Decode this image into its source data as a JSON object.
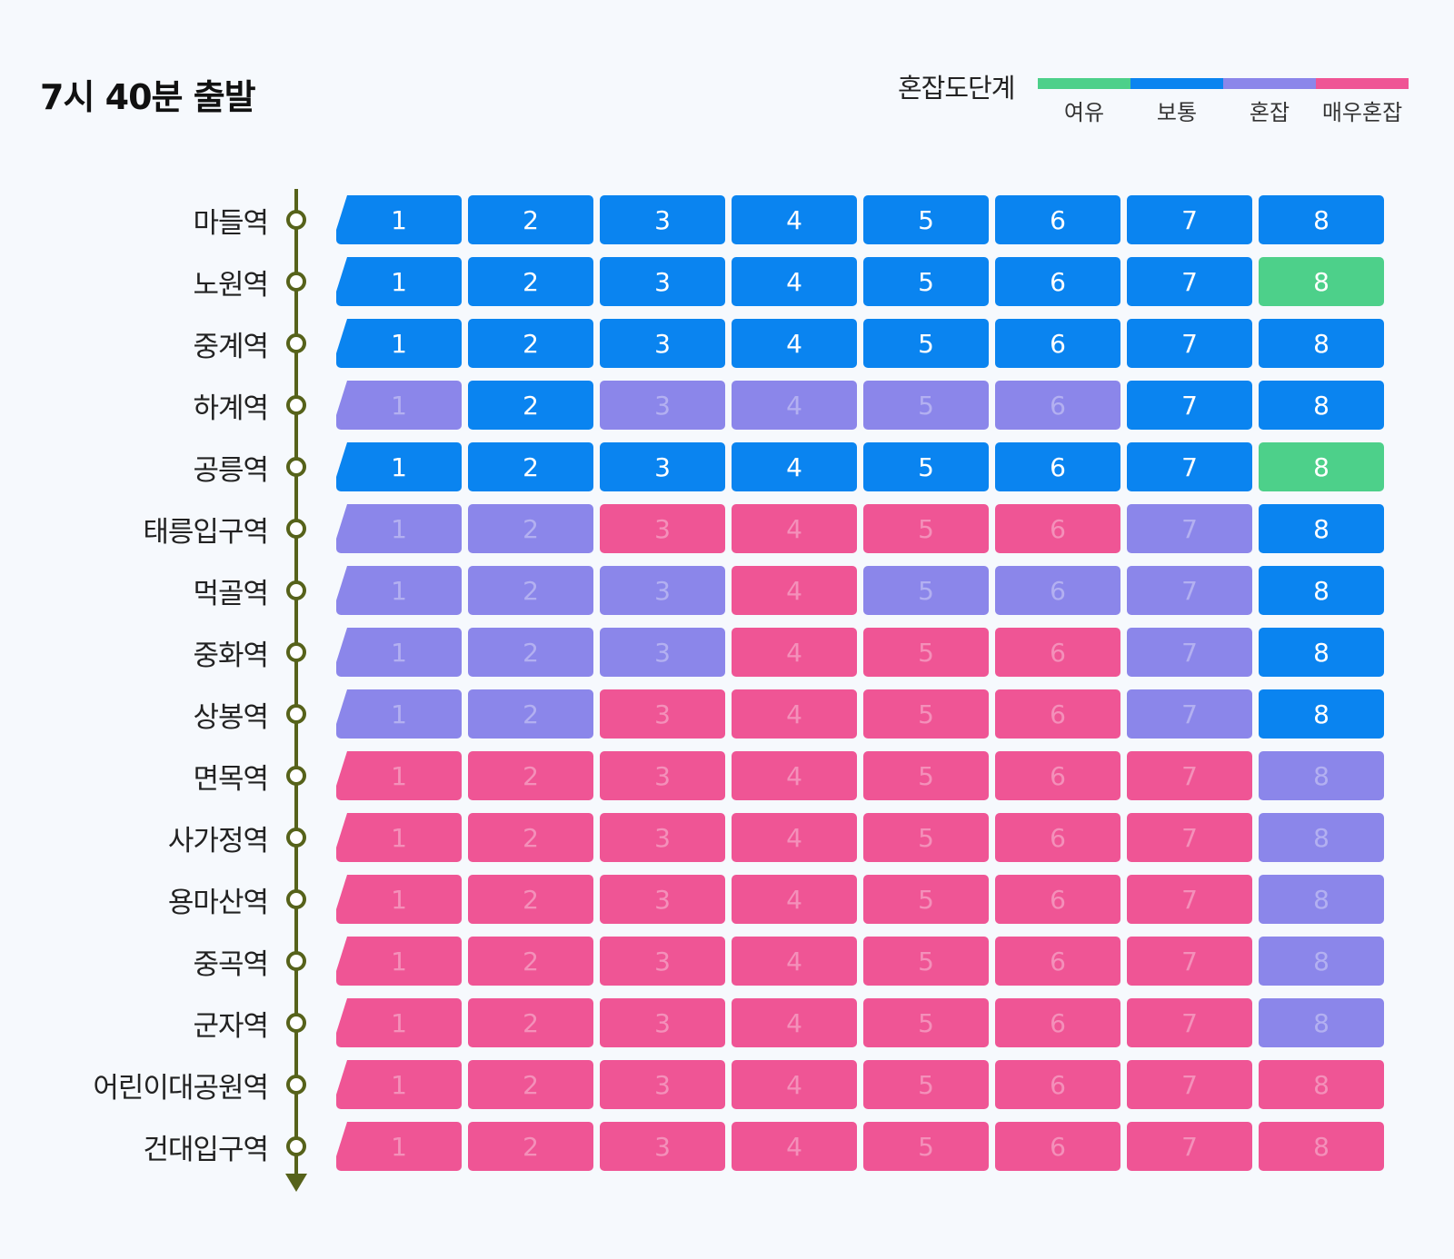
{
  "title": "7시 40분 출발",
  "legend": {
    "label": "혼잡도단계",
    "levels": [
      {
        "key": "relaxed",
        "label": "여유",
        "color": "#4dd08a"
      },
      {
        "key": "normal",
        "label": "보통",
        "color": "#0a84f0"
      },
      {
        "key": "crowded",
        "label": "혼잡",
        "color": "#8b86ea"
      },
      {
        "key": "very_crowded",
        "label": "매우혼잡",
        "color": "#ef5595"
      }
    ]
  },
  "colors": {
    "line": "#56621a",
    "station_dot_fill": "#ffffff"
  },
  "chart_data": {
    "type": "heatmap",
    "title": "7시 40분 출발",
    "cars": [
      "1",
      "2",
      "3",
      "4",
      "5",
      "6",
      "7",
      "8"
    ],
    "stations": [
      "마들역",
      "노원역",
      "중계역",
      "하계역",
      "공릉역",
      "태릉입구역",
      "먹골역",
      "중화역",
      "상봉역",
      "면목역",
      "사가정역",
      "용마산역",
      "중곡역",
      "군자역",
      "어린이대공원역",
      "건대입구역"
    ],
    "levels": [
      [
        "normal",
        "normal",
        "normal",
        "normal",
        "normal",
        "normal",
        "normal",
        "normal"
      ],
      [
        "normal",
        "normal",
        "normal",
        "normal",
        "normal",
        "normal",
        "normal",
        "relaxed"
      ],
      [
        "normal",
        "normal",
        "normal",
        "normal",
        "normal",
        "normal",
        "normal",
        "normal"
      ],
      [
        "crowded",
        "normal",
        "crowded",
        "crowded",
        "crowded",
        "crowded",
        "normal",
        "normal"
      ],
      [
        "normal",
        "normal",
        "normal",
        "normal",
        "normal",
        "normal",
        "normal",
        "relaxed"
      ],
      [
        "crowded",
        "crowded",
        "very_crowded",
        "very_crowded",
        "very_crowded",
        "very_crowded",
        "crowded",
        "normal"
      ],
      [
        "crowded",
        "crowded",
        "crowded",
        "very_crowded",
        "crowded",
        "crowded",
        "crowded",
        "normal"
      ],
      [
        "crowded",
        "crowded",
        "crowded",
        "very_crowded",
        "very_crowded",
        "very_crowded",
        "crowded",
        "normal"
      ],
      [
        "crowded",
        "crowded",
        "very_crowded",
        "very_crowded",
        "very_crowded",
        "very_crowded",
        "crowded",
        "normal"
      ],
      [
        "very_crowded",
        "very_crowded",
        "very_crowded",
        "very_crowded",
        "very_crowded",
        "very_crowded",
        "very_crowded",
        "crowded"
      ],
      [
        "very_crowded",
        "very_crowded",
        "very_crowded",
        "very_crowded",
        "very_crowded",
        "very_crowded",
        "very_crowded",
        "crowded"
      ],
      [
        "very_crowded",
        "very_crowded",
        "very_crowded",
        "very_crowded",
        "very_crowded",
        "very_crowded",
        "very_crowded",
        "crowded"
      ],
      [
        "very_crowded",
        "very_crowded",
        "very_crowded",
        "very_crowded",
        "very_crowded",
        "very_crowded",
        "very_crowded",
        "crowded"
      ],
      [
        "very_crowded",
        "very_crowded",
        "very_crowded",
        "very_crowded",
        "very_crowded",
        "very_crowded",
        "very_crowded",
        "crowded"
      ],
      [
        "very_crowded",
        "very_crowded",
        "very_crowded",
        "very_crowded",
        "very_crowded",
        "very_crowded",
        "very_crowded",
        "very_crowded"
      ],
      [
        "very_crowded",
        "very_crowded",
        "very_crowded",
        "very_crowded",
        "very_crowded",
        "very_crowded",
        "very_crowded",
        "very_crowded"
      ]
    ]
  }
}
